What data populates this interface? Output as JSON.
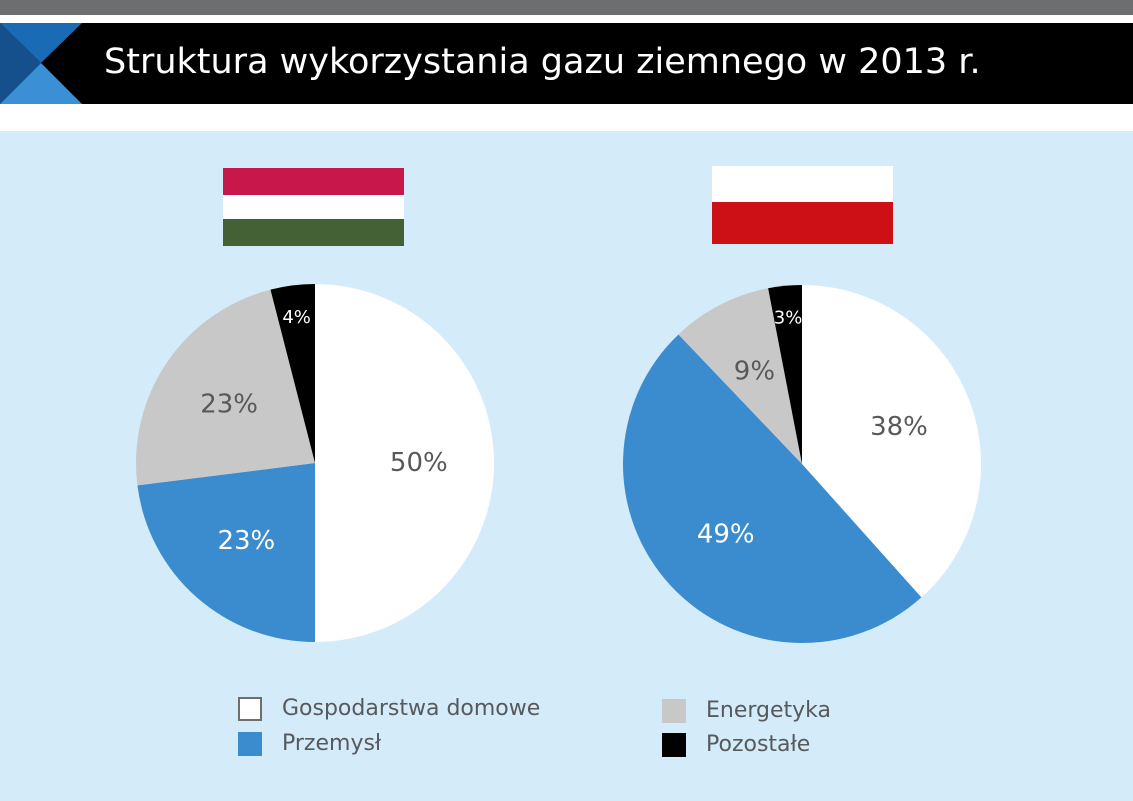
{
  "header": {
    "title": "Struktura wykorzystania gazu ziemnego w 2013 r."
  },
  "colors": {
    "gospodarstwa": "#ffffff",
    "przemysl": "#3a8ccf",
    "energetyka": "#c9c8c8",
    "pozostale": "#000000",
    "panel_bg": "#d4ebfa",
    "hungary_red": "#c8174a",
    "hungary_white": "#ffffff",
    "hungary_green": "#436135",
    "poland_white": "#ffffff",
    "poland_red": "#cc1016"
  },
  "legend": {
    "items": [
      {
        "label": "Gospodarstwa domowe",
        "color": "#ffffff",
        "key": "gospodarstwa"
      },
      {
        "label": "Przemysł",
        "color": "#3a8ccf",
        "key": "przemysl"
      },
      {
        "label": "Energetyka",
        "color": "#c9c8c8",
        "key": "energetyka"
      },
      {
        "label": "Pozostałe",
        "color": "#000000",
        "key": "pozostale"
      }
    ]
  },
  "chart_data": [
    {
      "type": "pie",
      "flag": "hungary",
      "categories": [
        "Gospodarstwa domowe",
        "Przemysł",
        "Energetyka",
        "Pozostałe"
      ],
      "values": [
        50,
        23,
        23,
        4
      ],
      "labels": [
        "50%",
        "23%",
        "23%",
        "4%"
      ]
    },
    {
      "type": "pie",
      "flag": "poland",
      "categories": [
        "Gospodarstwa domowe",
        "Przemysł",
        "Energetyka",
        "Pozostałe"
      ],
      "values": [
        38,
        49,
        9,
        3
      ],
      "labels": [
        "38%",
        "49%",
        "9%",
        "3%"
      ]
    }
  ]
}
